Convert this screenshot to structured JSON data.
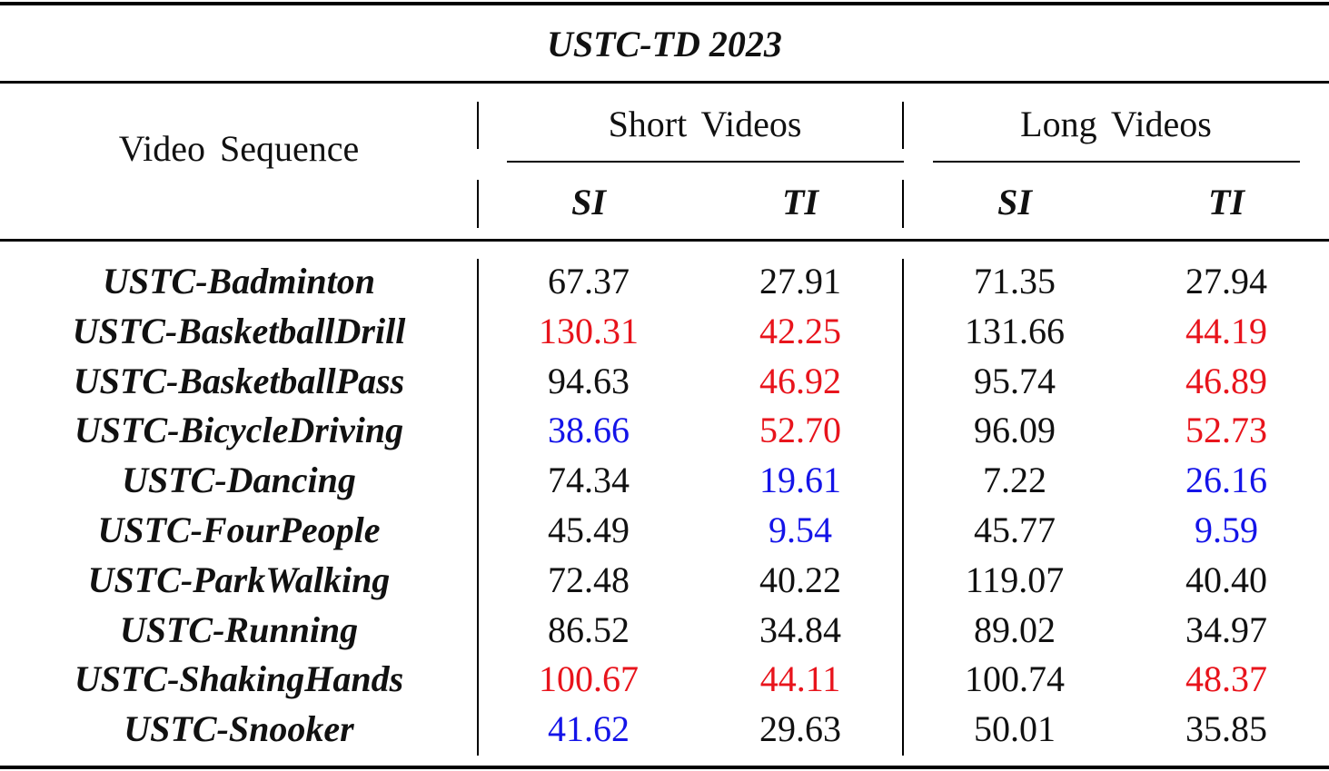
{
  "table": {
    "title": "USTC-TD 2023",
    "header": {
      "video_sequence": "Video Sequence",
      "short_videos": "Short Videos",
      "long_videos": "Long Videos",
      "short_si": "SI",
      "short_ti": "TI",
      "long_si": "SI",
      "long_ti": "TI"
    },
    "colors": {
      "default": "#111111",
      "red": "#e8141c",
      "blue": "#1414e8"
    },
    "rows": [
      {
        "name": "USTC-Badminton",
        "short_si": "67.37",
        "short_ti": "27.91",
        "long_si": "71.35",
        "long_ti": "27.94",
        "short_si_color": "default",
        "short_ti_color": "default",
        "long_si_color": "default",
        "long_ti_color": "default"
      },
      {
        "name": "USTC-BasketballDrill",
        "short_si": "130.31",
        "short_ti": "42.25",
        "long_si": "131.66",
        "long_ti": "44.19",
        "short_si_color": "red",
        "short_ti_color": "red",
        "long_si_color": "default",
        "long_ti_color": "red"
      },
      {
        "name": "USTC-BasketballPass",
        "short_si": "94.63",
        "short_ti": "46.92",
        "long_si": "95.74",
        "long_ti": "46.89",
        "short_si_color": "default",
        "short_ti_color": "red",
        "long_si_color": "default",
        "long_ti_color": "red"
      },
      {
        "name": "USTC-BicycleDriving",
        "short_si": "38.66",
        "short_ti": "52.70",
        "long_si": "96.09",
        "long_ti": "52.73",
        "short_si_color": "blue",
        "short_ti_color": "red",
        "long_si_color": "default",
        "long_ti_color": "red"
      },
      {
        "name": "USTC-Dancing",
        "short_si": "74.34",
        "short_ti": "19.61",
        "long_si": "7.22",
        "long_ti": "26.16",
        "short_si_color": "default",
        "short_ti_color": "blue",
        "long_si_color": "default",
        "long_ti_color": "blue"
      },
      {
        "name": "USTC-FourPeople",
        "short_si": "45.49",
        "short_ti": "9.54",
        "long_si": "45.77",
        "long_ti": "9.59",
        "short_si_color": "default",
        "short_ti_color": "blue",
        "long_si_color": "default",
        "long_ti_color": "blue"
      },
      {
        "name": "USTC-ParkWalking",
        "short_si": "72.48",
        "short_ti": "40.22",
        "long_si": "119.07",
        "long_ti": "40.40",
        "short_si_color": "default",
        "short_ti_color": "default",
        "long_si_color": "default",
        "long_ti_color": "default"
      },
      {
        "name": "USTC-Running",
        "short_si": "86.52",
        "short_ti": "34.84",
        "long_si": "89.02",
        "long_ti": "34.97",
        "short_si_color": "default",
        "short_ti_color": "default",
        "long_si_color": "default",
        "long_ti_color": "default"
      },
      {
        "name": "USTC-ShakingHands",
        "short_si": "100.67",
        "short_ti": "44.11",
        "long_si": "100.74",
        "long_ti": "48.37",
        "short_si_color": "red",
        "short_ti_color": "red",
        "long_si_color": "default",
        "long_ti_color": "red"
      },
      {
        "name": "USTC-Snooker",
        "short_si": "41.62",
        "short_ti": "29.63",
        "long_si": "50.01",
        "long_ti": "35.85",
        "short_si_color": "blue",
        "short_ti_color": "default",
        "long_si_color": "default",
        "long_ti_color": "default"
      }
    ]
  }
}
